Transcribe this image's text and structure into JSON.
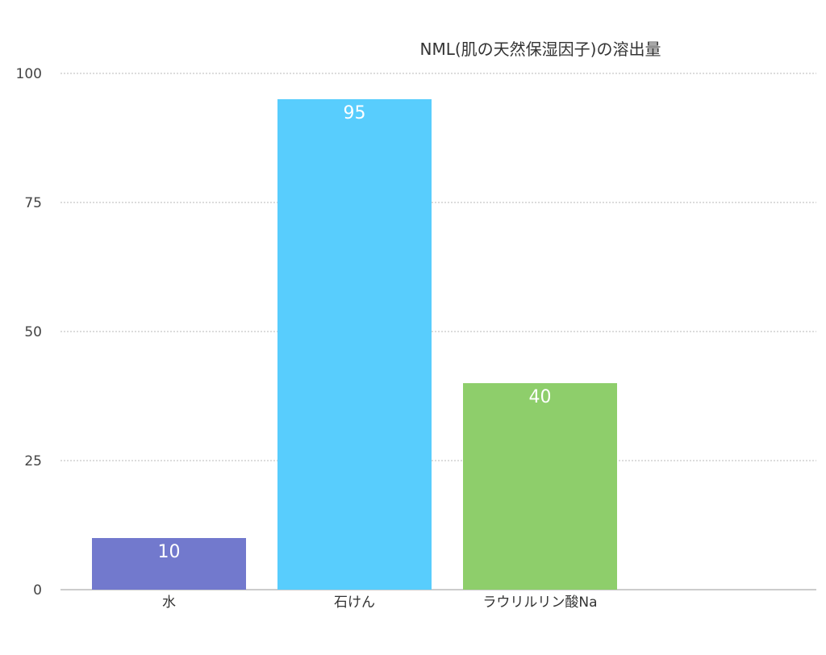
{
  "chart_data": {
    "type": "bar",
    "title": "NML(肌の天然保湿因子)の溶出量",
    "categories": [
      "水",
      "石けん",
      "ラウリルリン酸Na"
    ],
    "values": [
      10,
      95,
      40
    ],
    "colors": [
      "#7279cd",
      "#58cdfd",
      "#8ece6b"
    ],
    "ylim": [
      0,
      100
    ],
    "yticks": [
      0,
      25,
      50,
      75,
      100
    ],
    "xlabel": "",
    "ylabel": "",
    "grid": true,
    "data_labels": true
  }
}
